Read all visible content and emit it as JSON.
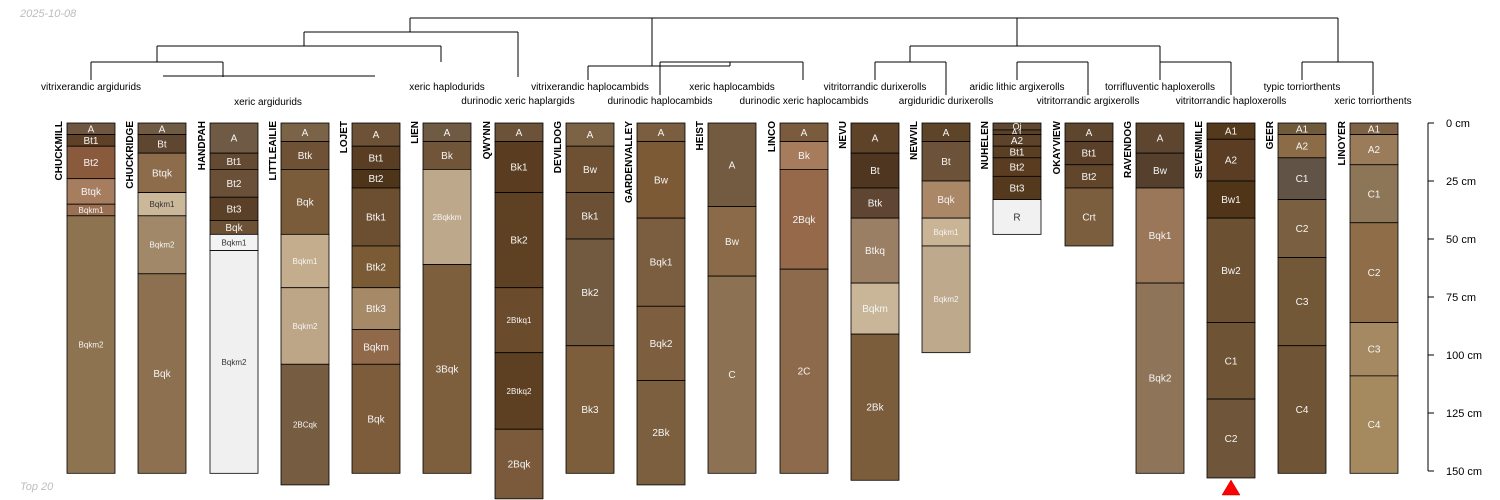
{
  "date": "2025-10-08",
  "footer": "Top 20",
  "depth_axis": {
    "unit": "cm",
    "max": 150,
    "ticks": [
      0,
      25,
      50,
      75,
      100,
      125,
      150
    ]
  },
  "colors": {
    "line": "#000000",
    "marker": "#ff0000",
    "light_text": "#f5f5f5",
    "dark_text": "#333333"
  },
  "taxa": [
    "vitrixerandic argidurids",
    "xeric argidurids",
    "xeric haplodurids",
    "durinodic xeric haplargids",
    "vitrixerandic haplocambids",
    "durinodic haplocambids",
    "xeric haplocambids",
    "durinodic xeric haplocambids",
    "vitritorrandic durixerolls",
    "argiduridic durixerolls",
    "aridic lithic argixerolls",
    "vitritorrandic argixerolls",
    "torrifluventic haploxerolls",
    "vitritorrandic haploxerolls",
    "typic torriorthents",
    "xeric torriorthents"
  ],
  "profiles": [
    {
      "name": "CHUCKMILL",
      "horizons": [
        {
          "h": "A",
          "top": 0,
          "bottom": 5,
          "color": "#6f5640"
        },
        {
          "h": "Bt1",
          "top": 5,
          "bottom": 10,
          "color": "#5e4126"
        },
        {
          "h": "Bt2",
          "top": 10,
          "bottom": 24,
          "color": "#8a5a3c"
        },
        {
          "h": "Btqk",
          "top": 24,
          "bottom": 35,
          "color": "#a77d60"
        },
        {
          "h": "Bqkm1",
          "top": 35,
          "bottom": 40,
          "color": "#9a6f52"
        },
        {
          "h": "Bqkm2",
          "top": 40,
          "bottom": 151,
          "color": "#8e7350"
        }
      ]
    },
    {
      "name": "CHUCKRIDGE",
      "horizons": [
        {
          "h": "A",
          "top": 0,
          "bottom": 5,
          "color": "#6f5a44"
        },
        {
          "h": "Bt",
          "top": 5,
          "bottom": 13,
          "color": "#5e4630"
        },
        {
          "h": "Btqk",
          "top": 13,
          "bottom": 30,
          "color": "#8c6c4a"
        },
        {
          "h": "Bqkm1",
          "top": 30,
          "bottom": 40,
          "color": "#cbb89a"
        },
        {
          "h": "Bqkm2",
          "top": 40,
          "bottom": 65,
          "color": "#a08868"
        },
        {
          "h": "Bqk",
          "top": 65,
          "bottom": 151,
          "color": "#8d7050"
        }
      ]
    },
    {
      "name": "HANDPAH",
      "horizons": [
        {
          "h": "A",
          "top": 0,
          "bottom": 13,
          "color": "#6e5a45"
        },
        {
          "h": "Bt1",
          "top": 13,
          "bottom": 20,
          "color": "#644a33"
        },
        {
          "h": "Bt2",
          "top": 20,
          "bottom": 32,
          "color": "#6b5038"
        },
        {
          "h": "Bt3",
          "top": 32,
          "bottom": 42,
          "color": "#5a4027"
        },
        {
          "h": "Bqk",
          "top": 42,
          "bottom": 48,
          "color": "#6d5134"
        },
        {
          "h": "Bqkm1",
          "top": 48,
          "bottom": 55,
          "color": "#f3f3f3"
        },
        {
          "h": "Bqkm2",
          "top": 55,
          "bottom": 151,
          "color": "#f0f0f0"
        }
      ]
    },
    {
      "name": "LITTLEAILIE",
      "horizons": [
        {
          "h": "A",
          "top": 0,
          "bottom": 8,
          "color": "#7a6347"
        },
        {
          "h": "Btk",
          "top": 8,
          "bottom": 20,
          "color": "#6f5236"
        },
        {
          "h": "Bqk",
          "top": 20,
          "bottom": 48,
          "color": "#7a5b3a"
        },
        {
          "h": "Bqkm1",
          "top": 48,
          "bottom": 71,
          "color": "#c4ad8c"
        },
        {
          "h": "Bqkm2",
          "top": 71,
          "bottom": 104,
          "color": "#bda587"
        },
        {
          "h": "2BCqk",
          "top": 104,
          "bottom": 156,
          "color": "#765c40"
        }
      ]
    },
    {
      "name": "LOJET",
      "horizons": [
        {
          "h": "A",
          "top": 0,
          "bottom": 10,
          "color": "#6e5238"
        },
        {
          "h": "Bt1",
          "top": 10,
          "bottom": 20,
          "color": "#5a3e23"
        },
        {
          "h": "Bt2",
          "top": 20,
          "bottom": 28,
          "color": "#4e3419"
        },
        {
          "h": "Btk1",
          "top": 28,
          "bottom": 53,
          "color": "#6c4f30"
        },
        {
          "h": "Btk2",
          "top": 53,
          "bottom": 71,
          "color": "#7b5a36"
        },
        {
          "h": "Btk3",
          "top": 71,
          "bottom": 89,
          "color": "#a68a68"
        },
        {
          "h": "Bqkm",
          "top": 89,
          "bottom": 104,
          "color": "#90694a"
        },
        {
          "h": "Bqk",
          "top": 104,
          "bottom": 151,
          "color": "#7c5c3a"
        }
      ]
    },
    {
      "name": "LIEN",
      "horizons": [
        {
          "h": "A",
          "top": 0,
          "bottom": 8,
          "color": "#6f5a44"
        },
        {
          "h": "Bk",
          "top": 8,
          "bottom": 20,
          "color": "#705538"
        },
        {
          "h": "2Bqkkm",
          "top": 20,
          "bottom": 61,
          "color": "#bea88b"
        },
        {
          "h": "3Bqk",
          "top": 61,
          "bottom": 151,
          "color": "#7d5f3e"
        }
      ]
    },
    {
      "name": "QWYNN",
      "horizons": [
        {
          "h": "A",
          "top": 0,
          "bottom": 8,
          "color": "#6c5238"
        },
        {
          "h": "Bk1",
          "top": 8,
          "bottom": 30,
          "color": "#5a3c20"
        },
        {
          "h": "Bk2",
          "top": 30,
          "bottom": 71,
          "color": "#5e4122"
        },
        {
          "h": "2Btkq1",
          "top": 71,
          "bottom": 99,
          "color": "#6a4b2b"
        },
        {
          "h": "2Btkq2",
          "top": 99,
          "bottom": 132,
          "color": "#5d3f21"
        },
        {
          "h": "2Bqk",
          "top": 132,
          "bottom": 162,
          "color": "#7a5a3a"
        }
      ]
    },
    {
      "name": "DEVILDOG",
      "horizons": [
        {
          "h": "A",
          "top": 0,
          "bottom": 10,
          "color": "#7d6346"
        },
        {
          "h": "Bw",
          "top": 10,
          "bottom": 30,
          "color": "#6e5032"
        },
        {
          "h": "Bk1",
          "top": 30,
          "bottom": 50,
          "color": "#6b5036"
        },
        {
          "h": "Bk2",
          "top": 50,
          "bottom": 96,
          "color": "#725a41"
        },
        {
          "h": "Bk3",
          "top": 96,
          "bottom": 151,
          "color": "#7c5e3c"
        }
      ]
    },
    {
      "name": "GARDENVALLEY",
      "horizons": [
        {
          "h": "A",
          "top": 0,
          "bottom": 8,
          "color": "#7a5e3f"
        },
        {
          "h": "Bw",
          "top": 8,
          "bottom": 41,
          "color": "#7c5a36"
        },
        {
          "h": "Bqk1",
          "top": 41,
          "bottom": 79,
          "color": "#7b5d3f"
        },
        {
          "h": "Bqk2",
          "top": 79,
          "bottom": 111,
          "color": "#7d5f40"
        },
        {
          "h": "2Bk",
          "top": 111,
          "bottom": 156,
          "color": "#7b5f3e"
        }
      ]
    },
    {
      "name": "HEIST",
      "horizons": [
        {
          "h": "A",
          "top": 0,
          "bottom": 36,
          "color": "#735b42"
        },
        {
          "h": "Bw",
          "top": 36,
          "bottom": 66,
          "color": "#8a6a48"
        },
        {
          "h": "C",
          "top": 66,
          "bottom": 151,
          "color": "#8c7252"
        }
      ]
    },
    {
      "name": "LINCO",
      "horizons": [
        {
          "h": "A",
          "top": 0,
          "bottom": 8,
          "color": "#7a5b3d"
        },
        {
          "h": "Bk",
          "top": 8,
          "bottom": 20,
          "color": "#a77c5d"
        },
        {
          "h": "2Bqk",
          "top": 20,
          "bottom": 63,
          "color": "#97694b"
        },
        {
          "h": "2C",
          "top": 63,
          "bottom": 151,
          "color": "#8e6a4c"
        }
      ]
    },
    {
      "name": "NEVU",
      "horizons": [
        {
          "h": "A",
          "top": 0,
          "bottom": 13,
          "color": "#5e4329"
        },
        {
          "h": "Bt",
          "top": 13,
          "bottom": 28,
          "color": "#4e3621"
        },
        {
          "h": "Btk",
          "top": 28,
          "bottom": 41,
          "color": "#5e4632"
        },
        {
          "h": "Btkq",
          "top": 41,
          "bottom": 69,
          "color": "#9a7f64"
        },
        {
          "h": "Bqkm",
          "top": 69,
          "bottom": 91,
          "color": "#c9b597"
        },
        {
          "h": "2Bk",
          "top": 91,
          "bottom": 154,
          "color": "#7b5c3b"
        }
      ]
    },
    {
      "name": "NEWVIL",
      "horizons": [
        {
          "h": "A",
          "top": 0,
          "bottom": 8,
          "color": "#5e4529"
        },
        {
          "h": "Bt",
          "top": 8,
          "bottom": 25,
          "color": "#6c5239"
        },
        {
          "h": "Bqk",
          "top": 25,
          "bottom": 41,
          "color": "#a98767"
        },
        {
          "h": "Bqkm1",
          "top": 41,
          "bottom": 53,
          "color": "#cab496"
        },
        {
          "h": "Bqkm2",
          "top": 53,
          "bottom": 99,
          "color": "#bfa98c"
        }
      ]
    },
    {
      "name": "NUHELEN",
      "horizons": [
        {
          "h": "Oi",
          "top": 0,
          "bottom": 3,
          "color": "#5e4630"
        },
        {
          "h": "A1",
          "top": 3,
          "bottom": 5,
          "color": "#5a3f27"
        },
        {
          "h": "A2",
          "top": 5,
          "bottom": 10,
          "color": "#5e432b"
        },
        {
          "h": "Bt1",
          "top": 10,
          "bottom": 15,
          "color": "#5a3f22"
        },
        {
          "h": "Bt2",
          "top": 15,
          "bottom": 23,
          "color": "#5a3c20"
        },
        {
          "h": "Bt3",
          "top": 23,
          "bottom": 33,
          "color": "#55391d"
        },
        {
          "h": "R",
          "top": 33,
          "bottom": 48,
          "color": "#f1f1f1"
        }
      ]
    },
    {
      "name": "OKAYVIEW",
      "horizons": [
        {
          "h": "A",
          "top": 0,
          "bottom": 8,
          "color": "#5e452d"
        },
        {
          "h": "Bt1",
          "top": 8,
          "bottom": 18,
          "color": "#5a4029"
        },
        {
          "h": "Bt2",
          "top": 18,
          "bottom": 28,
          "color": "#61462c"
        },
        {
          "h": "Crt",
          "top": 28,
          "bottom": 53,
          "color": "#7b5e3e"
        }
      ]
    },
    {
      "name": "RAVENDOG",
      "horizons": [
        {
          "h": "A",
          "top": 0,
          "bottom": 13,
          "color": "#5e4530"
        },
        {
          "h": "Bw",
          "top": 13,
          "bottom": 28,
          "color": "#54402c"
        },
        {
          "h": "Bqk1",
          "top": 28,
          "bottom": 69,
          "color": "#9a7759"
        },
        {
          "h": "Bqk2",
          "top": 69,
          "bottom": 151,
          "color": "#8e7458"
        }
      ]
    },
    {
      "name": "SEVENMILE",
      "horizons": [
        {
          "h": "A1",
          "top": 0,
          "bottom": 7,
          "color": "#55391d"
        },
        {
          "h": "A2",
          "top": 7,
          "bottom": 25,
          "color": "#5a3d22"
        },
        {
          "h": "Bw1",
          "top": 25,
          "bottom": 41,
          "color": "#503519"
        },
        {
          "h": "Bw2",
          "top": 41,
          "bottom": 86,
          "color": "#6c5032"
        },
        {
          "h": "C1",
          "top": 86,
          "bottom": 119,
          "color": "#6e5335"
        },
        {
          "h": "C2",
          "top": 119,
          "bottom": 153,
          "color": "#6f5539"
        }
      ]
    },
    {
      "name": "GEER",
      "horizons": [
        {
          "h": "A1",
          "top": 0,
          "bottom": 5,
          "color": "#6f5a3c"
        },
        {
          "h": "A2",
          "top": 5,
          "bottom": 15,
          "color": "#8c6c47"
        },
        {
          "h": "C1",
          "top": 15,
          "bottom": 33,
          "color": "#625347"
        },
        {
          "h": "C2",
          "top": 33,
          "bottom": 58,
          "color": "#7a5f40"
        },
        {
          "h": "C3",
          "top": 58,
          "bottom": 96,
          "color": "#735838"
        },
        {
          "h": "C4",
          "top": 96,
          "bottom": 151,
          "color": "#6f5535"
        }
      ]
    },
    {
      "name": "LINOYER",
      "horizons": [
        {
          "h": "A1",
          "top": 0,
          "bottom": 5,
          "color": "#7e6245"
        },
        {
          "h": "A2",
          "top": 5,
          "bottom": 18,
          "color": "#9a7b5a"
        },
        {
          "h": "C1",
          "top": 18,
          "bottom": 43,
          "color": "#8d7658"
        },
        {
          "h": "C2",
          "top": 43,
          "bottom": 86,
          "color": "#8e6d48"
        },
        {
          "h": "C3",
          "top": 86,
          "bottom": 109,
          "color": "#a58962"
        },
        {
          "h": "C4",
          "top": 109,
          "bottom": 151,
          "color": "#a5895f"
        }
      ]
    }
  ]
}
